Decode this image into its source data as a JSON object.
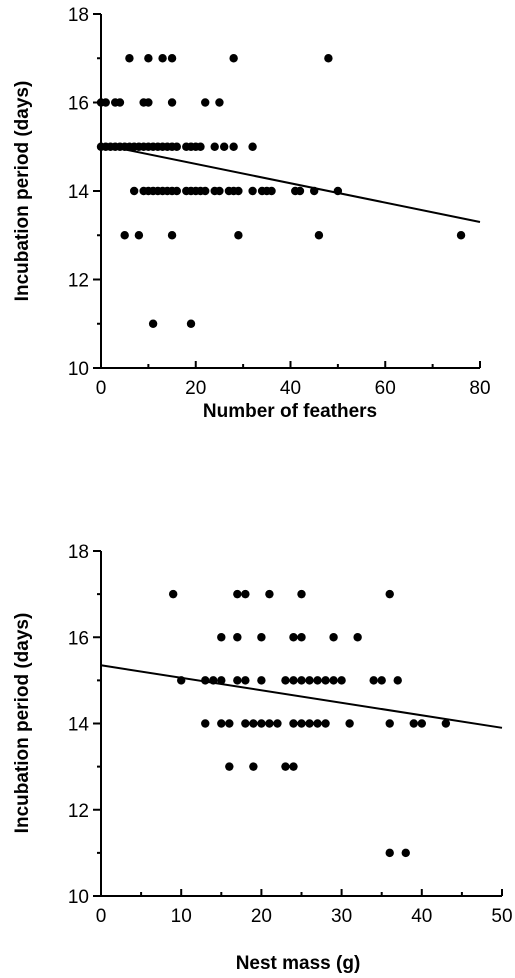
{
  "chart_data": [
    {
      "type": "scatter",
      "xlabel": "Number of feathers",
      "ylabel": "Incubation period (days)",
      "xlim": [
        0,
        80
      ],
      "ylim": [
        10,
        18
      ],
      "xticks": [
        0,
        20,
        40,
        60,
        80
      ],
      "yticks": [
        10,
        12,
        14,
        16,
        18
      ],
      "trendline": {
        "x": [
          0,
          80
        ],
        "y": [
          15.05,
          13.3
        ]
      },
      "points": [
        [
          0,
          16
        ],
        [
          1,
          16
        ],
        [
          3,
          16
        ],
        [
          4,
          16
        ],
        [
          9,
          16
        ],
        [
          10,
          16
        ],
        [
          15,
          16
        ],
        [
          22,
          16
        ],
        [
          25,
          16
        ],
        [
          6,
          17
        ],
        [
          10,
          17
        ],
        [
          13,
          17
        ],
        [
          15,
          17
        ],
        [
          28,
          17
        ],
        [
          48,
          17
        ],
        [
          0,
          15
        ],
        [
          1,
          15
        ],
        [
          2,
          15
        ],
        [
          3,
          15
        ],
        [
          4,
          15
        ],
        [
          5,
          15
        ],
        [
          6,
          15
        ],
        [
          7,
          15
        ],
        [
          8,
          15
        ],
        [
          9,
          15
        ],
        [
          10,
          15
        ],
        [
          11,
          15
        ],
        [
          12,
          15
        ],
        [
          13,
          15
        ],
        [
          14,
          15
        ],
        [
          15,
          15
        ],
        [
          16,
          15
        ],
        [
          18,
          15
        ],
        [
          19,
          15
        ],
        [
          20,
          15
        ],
        [
          21,
          15
        ],
        [
          24,
          15
        ],
        [
          26,
          15
        ],
        [
          28,
          15
        ],
        [
          32,
          15
        ],
        [
          7,
          14
        ],
        [
          9,
          14
        ],
        [
          10,
          14
        ],
        [
          11,
          14
        ],
        [
          12,
          14
        ],
        [
          13,
          14
        ],
        [
          14,
          14
        ],
        [
          15,
          14
        ],
        [
          16,
          14
        ],
        [
          18,
          14
        ],
        [
          19,
          14
        ],
        [
          20,
          14
        ],
        [
          21,
          14
        ],
        [
          22,
          14
        ],
        [
          24,
          14
        ],
        [
          25,
          14
        ],
        [
          27,
          14
        ],
        [
          28,
          14
        ],
        [
          29,
          14
        ],
        [
          32,
          14
        ],
        [
          34,
          14
        ],
        [
          35,
          14
        ],
        [
          36,
          14
        ],
        [
          41,
          14
        ],
        [
          42,
          14
        ],
        [
          45,
          14
        ],
        [
          50,
          14
        ],
        [
          5,
          13
        ],
        [
          8,
          13
        ],
        [
          15,
          13
        ],
        [
          29,
          13
        ],
        [
          46,
          13
        ],
        [
          76,
          13
        ],
        [
          11,
          11
        ],
        [
          19,
          11
        ]
      ]
    },
    {
      "type": "scatter",
      "xlabel": "Nest mass (g)",
      "ylabel": "Incubation period (days)",
      "xlim": [
        0,
        50
      ],
      "ylim": [
        10,
        18
      ],
      "xticks": [
        0,
        10,
        20,
        30,
        40,
        50
      ],
      "yticks": [
        10,
        12,
        14,
        16,
        18
      ],
      "trendline": {
        "x": [
          0,
          50
        ],
        "y": [
          15.35,
          13.9
        ]
      },
      "points": [
        [
          9,
          17
        ],
        [
          17,
          17
        ],
        [
          18,
          17
        ],
        [
          21,
          17
        ],
        [
          25,
          17
        ],
        [
          36,
          17
        ],
        [
          15,
          16
        ],
        [
          17,
          16
        ],
        [
          20,
          16
        ],
        [
          24,
          16
        ],
        [
          25,
          16
        ],
        [
          29,
          16
        ],
        [
          32,
          16
        ],
        [
          10,
          15
        ],
        [
          13,
          15
        ],
        [
          14,
          15
        ],
        [
          15,
          15
        ],
        [
          17,
          15
        ],
        [
          18,
          15
        ],
        [
          20,
          15
        ],
        [
          23,
          15
        ],
        [
          24,
          15
        ],
        [
          25,
          15
        ],
        [
          26,
          15
        ],
        [
          27,
          15
        ],
        [
          28,
          15
        ],
        [
          29,
          15
        ],
        [
          30,
          15
        ],
        [
          34,
          15
        ],
        [
          35,
          15
        ],
        [
          37,
          15
        ],
        [
          13,
          14
        ],
        [
          15,
          14
        ],
        [
          16,
          14
        ],
        [
          18,
          14
        ],
        [
          19,
          14
        ],
        [
          20,
          14
        ],
        [
          21,
          14
        ],
        [
          22,
          14
        ],
        [
          24,
          14
        ],
        [
          25,
          14
        ],
        [
          26,
          14
        ],
        [
          27,
          14
        ],
        [
          28,
          14
        ],
        [
          31,
          14
        ],
        [
          36,
          14
        ],
        [
          39,
          14
        ],
        [
          40,
          14
        ],
        [
          43,
          14
        ],
        [
          16,
          13
        ],
        [
          19,
          13
        ],
        [
          23,
          13
        ],
        [
          24,
          13
        ],
        [
          36,
          11
        ],
        [
          38,
          11
        ]
      ]
    }
  ]
}
